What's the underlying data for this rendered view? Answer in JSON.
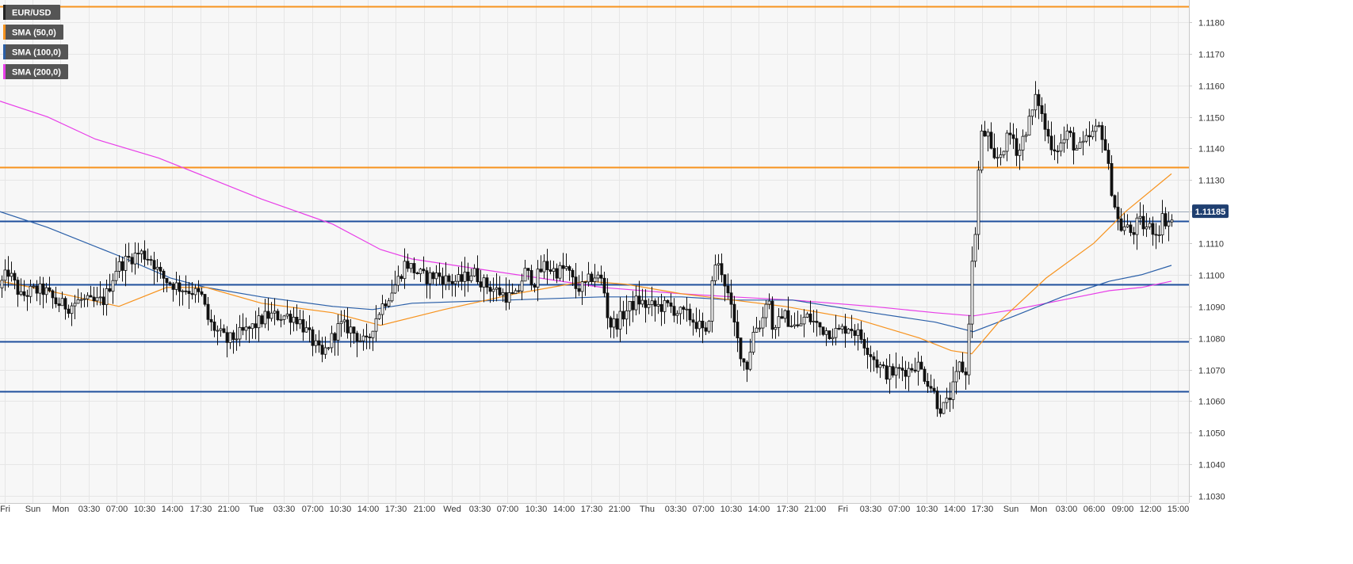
{
  "chart_data": {
    "type": "candlestick",
    "ylim": [
      1.103,
      1.1185
    ],
    "y_ticks": [
      "1.1030",
      "1.1040",
      "1.1050",
      "1.1060",
      "1.1070",
      "1.1080",
      "1.1090",
      "1.1100",
      "1.1110",
      "1.1120",
      "1.1130",
      "1.1140",
      "1.1150",
      "1.1160",
      "1.1170",
      "1.1180"
    ],
    "x_ticks": [
      "Fri",
      "Sun",
      "Mon",
      "03:30",
      "07:00",
      "10:30",
      "14:00",
      "17:30",
      "21:00",
      "Tue",
      "03:30",
      "07:00",
      "10:30",
      "14:00",
      "17:30",
      "21:00",
      "Wed",
      "03:30",
      "07:00",
      "10:30",
      "14:00",
      "17:30",
      "21:00",
      "Thu",
      "03:30",
      "07:00",
      "10:30",
      "14:00",
      "17:30",
      "21:00",
      "Fri",
      "03:30",
      "07:00",
      "10:30",
      "14:00",
      "17:30",
      "Sun",
      "Mon",
      "03:00",
      "06:00",
      "09:00",
      "12:00",
      "15:00"
    ],
    "grid": true,
    "legend": [
      {
        "label": "EUR/USD",
        "color": "#222222"
      },
      {
        "label": "SMA (50,0)",
        "color": "#f7931e"
      },
      {
        "label": "SMA (100,0)",
        "color": "#2a5fa8"
      },
      {
        "label": "SMA (200,0)",
        "color": "#e83ee8"
      }
    ],
    "legend_placement": "top-left",
    "current_price": "1.11185",
    "horizontal_levels": [
      {
        "value": 1.1185,
        "color": "#f7931e"
      },
      {
        "value": 1.1134,
        "color": "#f7931e"
      },
      {
        "value": 1.1117,
        "color": "#1f4f9c"
      },
      {
        "value": 1.1097,
        "color": "#1f4f9c"
      },
      {
        "value": 1.1079,
        "color": "#1f4f9c"
      },
      {
        "value": 1.1063,
        "color": "#1f4f9c"
      }
    ],
    "candles_anchor": [
      [
        0,
        1.1095
      ],
      [
        14,
        1.1101
      ],
      [
        30,
        1.1093
      ],
      [
        44,
        1.1095
      ],
      [
        60,
        1.1095
      ],
      [
        75,
        1.1091
      ],
      [
        90,
        1.109
      ],
      [
        105,
        1.1092
      ],
      [
        120,
        1.1091
      ],
      [
        135,
        1.1092
      ],
      [
        150,
        1.1102
      ],
      [
        165,
        1.1105
      ],
      [
        180,
        1.1107
      ],
      [
        195,
        1.1105
      ],
      [
        205,
        1.11
      ],
      [
        215,
        1.1098
      ],
      [
        230,
        1.1096
      ],
      [
        245,
        1.1095
      ],
      [
        258,
        1.1093
      ],
      [
        267,
        1.1085
      ],
      [
        278,
        1.1082
      ],
      [
        290,
        1.1079
      ],
      [
        305,
        1.1081
      ],
      [
        320,
        1.1083
      ],
      [
        330,
        1.1085
      ],
      [
        340,
        1.1087
      ],
      [
        355,
        1.1087
      ],
      [
        370,
        1.1087
      ],
      [
        380,
        1.1086
      ],
      [
        390,
        1.1082
      ],
      [
        400,
        1.1078
      ],
      [
        410,
        1.1074
      ],
      [
        420,
        1.1079
      ],
      [
        432,
        1.1084
      ],
      [
        445,
        1.1083
      ],
      [
        460,
        1.1079
      ],
      [
        467,
        1.1078
      ],
      [
        475,
        1.1085
      ],
      [
        485,
        1.109
      ],
      [
        495,
        1.1094
      ],
      [
        505,
        1.1098
      ],
      [
        515,
        1.1104
      ],
      [
        528,
        1.1101
      ],
      [
        540,
        1.1099
      ],
      [
        555,
        1.11
      ],
      [
        570,
        1.1098
      ],
      [
        585,
        1.1098
      ],
      [
        600,
        1.1101
      ],
      [
        615,
        1.1097
      ],
      [
        630,
        1.1095
      ],
      [
        645,
        1.1093
      ],
      [
        655,
        1.1093
      ],
      [
        665,
        1.1101
      ],
      [
        678,
        1.1098
      ],
      [
        690,
        1.1103
      ],
      [
        705,
        1.1101
      ],
      [
        718,
        1.1102
      ],
      [
        730,
        1.1096
      ],
      [
        740,
        1.1096
      ],
      [
        752,
        1.11
      ],
      [
        764,
        1.1098
      ],
      [
        772,
        1.1084
      ],
      [
        782,
        1.1085
      ],
      [
        795,
        1.1089
      ],
      [
        808,
        1.1092
      ],
      [
        820,
        1.109
      ],
      [
        835,
        1.109
      ],
      [
        848,
        1.109
      ],
      [
        860,
        1.1088
      ],
      [
        872,
        1.1087
      ],
      [
        885,
        1.1084
      ],
      [
        895,
        1.108
      ],
      [
        905,
        1.1104
      ],
      [
        915,
        1.1101
      ],
      [
        925,
        1.109
      ],
      [
        935,
        1.1078
      ],
      [
        945,
        1.107
      ],
      [
        955,
        1.1083
      ],
      [
        965,
        1.1085
      ],
      [
        972,
        1.1095
      ],
      [
        980,
        1.108
      ],
      [
        990,
        1.1088
      ],
      [
        1000,
        1.1085
      ],
      [
        1010,
        1.1083
      ],
      [
        1020,
        1.1087
      ],
      [
        1030,
        1.1085
      ],
      [
        1040,
        1.1083
      ],
      [
        1050,
        1.1082
      ],
      [
        1062,
        1.1082
      ],
      [
        1075,
        1.1084
      ],
      [
        1090,
        1.108
      ],
      [
        1100,
        1.1076
      ],
      [
        1110,
        1.1072
      ],
      [
        1120,
        1.1069
      ],
      [
        1130,
        1.1069
      ],
      [
        1140,
        1.107
      ],
      [
        1150,
        1.107
      ],
      [
        1160,
        1.1072
      ],
      [
        1170,
        1.1068
      ],
      [
        1180,
        1.1064
      ],
      [
        1188,
        1.1058
      ],
      [
        1196,
        1.1058
      ],
      [
        1206,
        1.1064
      ],
      [
        1215,
        1.1072
      ],
      [
        1222,
        1.1068
      ],
      [
        1228,
        1.1095
      ],
      [
        1234,
        1.1115
      ],
      [
        1240,
        1.114
      ],
      [
        1248,
        1.1147
      ],
      [
        1256,
        1.1135
      ],
      [
        1265,
        1.1138
      ],
      [
        1272,
        1.1142
      ],
      [
        1280,
        1.1145
      ],
      [
        1288,
        1.1138
      ],
      [
        1296,
        1.1145
      ],
      [
        1304,
        1.115
      ],
      [
        1312,
        1.1157
      ],
      [
        1320,
        1.1148
      ],
      [
        1328,
        1.1142
      ],
      [
        1336,
        1.114
      ],
      [
        1344,
        1.1142
      ],
      [
        1352,
        1.1145
      ],
      [
        1360,
        1.114
      ],
      [
        1368,
        1.114
      ],
      [
        1376,
        1.1143
      ],
      [
        1384,
        1.1145
      ],
      [
        1392,
        1.1147
      ],
      [
        1398,
        1.114
      ],
      [
        1404,
        1.113
      ],
      [
        1410,
        1.1122
      ],
      [
        1416,
        1.1115
      ],
      [
        1424,
        1.1115
      ],
      [
        1432,
        1.1113
      ],
      [
        1440,
        1.1117
      ],
      [
        1448,
        1.1115
      ],
      [
        1456,
        1.1115
      ],
      [
        1464,
        1.1113
      ],
      [
        1470,
        1.1118
      ],
      [
        1476,
        1.1117
      ]
    ],
    "sma50": [
      [
        0,
        1.1098
      ],
      [
        60,
        1.1095
      ],
      [
        150,
        1.109
      ],
      [
        210,
        1.1096
      ],
      [
        260,
        1.1096
      ],
      [
        330,
        1.1091
      ],
      [
        420,
        1.1088
      ],
      [
        480,
        1.1084
      ],
      [
        560,
        1.1089
      ],
      [
        650,
        1.1094
      ],
      [
        740,
        1.1098
      ],
      [
        790,
        1.1097
      ],
      [
        860,
        1.1094
      ],
      [
        925,
        1.1092
      ],
      [
        990,
        1.109
      ],
      [
        1080,
        1.1086
      ],
      [
        1160,
        1.108
      ],
      [
        1200,
        1.1076
      ],
      [
        1226,
        1.1075
      ],
      [
        1260,
        1.1085
      ],
      [
        1320,
        1.1099
      ],
      [
        1380,
        1.111
      ],
      [
        1420,
        1.112
      ],
      [
        1478,
        1.1132
      ]
    ],
    "sma100": [
      [
        0,
        1.112
      ],
      [
        60,
        1.1115
      ],
      [
        150,
        1.1106
      ],
      [
        215,
        1.1099
      ],
      [
        260,
        1.1096
      ],
      [
        330,
        1.1093
      ],
      [
        420,
        1.109
      ],
      [
        470,
        1.1089
      ],
      [
        520,
        1.1091
      ],
      [
        640,
        1.1092
      ],
      [
        760,
        1.1093
      ],
      [
        860,
        1.1093
      ],
      [
        925,
        1.1092
      ],
      [
        1000,
        1.1092
      ],
      [
        1100,
        1.1088
      ],
      [
        1180,
        1.1085
      ],
      [
        1228,
        1.1082
      ],
      [
        1280,
        1.1087
      ],
      [
        1340,
        1.1093
      ],
      [
        1400,
        1.1098
      ],
      [
        1440,
        1.11
      ],
      [
        1478,
        1.1103
      ]
    ],
    "sma200": [
      [
        0,
        1.1155
      ],
      [
        60,
        1.115
      ],
      [
        120,
        1.1143
      ],
      [
        200,
        1.1137
      ],
      [
        260,
        1.1131
      ],
      [
        330,
        1.1124
      ],
      [
        420,
        1.1116
      ],
      [
        480,
        1.1108
      ],
      [
        520,
        1.1105
      ],
      [
        600,
        1.1102
      ],
      [
        680,
        1.1099
      ],
      [
        760,
        1.1096
      ],
      [
        860,
        1.1094
      ],
      [
        925,
        1.1093
      ],
      [
        1000,
        1.1092
      ],
      [
        1100,
        1.109
      ],
      [
        1180,
        1.1088
      ],
      [
        1228,
        1.1087
      ],
      [
        1280,
        1.1089
      ],
      [
        1340,
        1.1092
      ],
      [
        1400,
        1.1095
      ],
      [
        1440,
        1.1096
      ],
      [
        1478,
        1.1098
      ]
    ]
  }
}
